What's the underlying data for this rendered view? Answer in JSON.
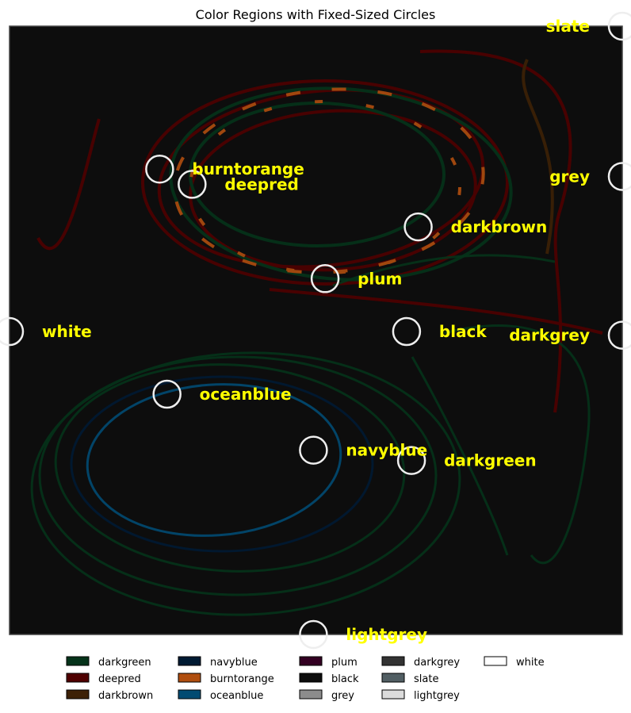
{
  "chart_data": {
    "type": "scatter",
    "title": "Color Regions with Fixed-Sized Circles",
    "xlim": [
      0,
      1
    ],
    "ylim": [
      0,
      1
    ],
    "grid": false,
    "axes_visible": false,
    "background": "#0d0d0d",
    "legend_position": "bottom",
    "label_color": "#ffff00",
    "marker": {
      "shape": "hollow-circle",
      "color": "#eeeeee"
    },
    "points": [
      {
        "label": "slate",
        "x": 1.0,
        "y": 1.0
      },
      {
        "label": "burntorange",
        "x": 0.245,
        "y": 0.765
      },
      {
        "label": "deepred",
        "x": 0.298,
        "y": 0.74
      },
      {
        "label": "grey",
        "x": 1.0,
        "y": 0.753
      },
      {
        "label": "darkbrown",
        "x": 0.667,
        "y": 0.67
      },
      {
        "label": "plum",
        "x": 0.515,
        "y": 0.585
      },
      {
        "label": "white",
        "x": 0.0,
        "y": 0.498
      },
      {
        "label": "black",
        "x": 0.648,
        "y": 0.498
      },
      {
        "label": "darkgrey",
        "x": 1.0,
        "y": 0.492
      },
      {
        "label": "oceanblue",
        "x": 0.257,
        "y": 0.395
      },
      {
        "label": "navyblue",
        "x": 0.496,
        "y": 0.303
      },
      {
        "label": "darkgreen",
        "x": 0.656,
        "y": 0.286
      },
      {
        "label": "lightgrey",
        "x": 0.496,
        "y": 0.0
      }
    ],
    "legend": [
      {
        "name": "darkgreen",
        "color": "#05331a"
      },
      {
        "name": "deepred",
        "color": "#4f0000"
      },
      {
        "name": "darkbrown",
        "color": "#3d2106"
      },
      {
        "name": "navyblue",
        "color": "#001a33"
      },
      {
        "name": "burntorange",
        "color": "#b04e0f"
      },
      {
        "name": "oceanblue",
        "color": "#014b72"
      },
      {
        "name": "plum",
        "color": "#330022"
      },
      {
        "name": "black",
        "color": "#0d0d0d"
      },
      {
        "name": "grey",
        "color": "#8c8c8c"
      },
      {
        "name": "darkgrey",
        "color": "#333333"
      },
      {
        "name": "slate",
        "color": "#515e63"
      },
      {
        "name": "lightgrey",
        "color": "#dcdcdc"
      },
      {
        "name": "white",
        "color": "#ffffff"
      }
    ]
  }
}
